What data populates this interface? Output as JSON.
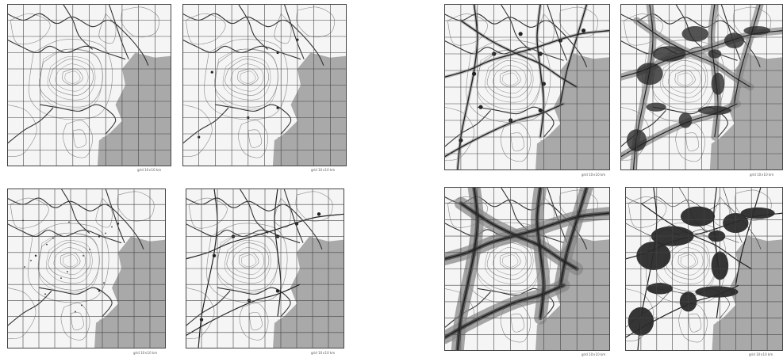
{
  "panels": [
    {
      "id": "p1",
      "caption": "grid 10×10 km",
      "stage": "base"
    },
    {
      "id": "p2",
      "caption": "grid 10×10 km",
      "stage": "nodes"
    },
    {
      "id": "p3",
      "caption": "grid 10×10 km",
      "stage": "points"
    },
    {
      "id": "p4",
      "caption": "grid 10×10 km",
      "stage": "network"
    },
    {
      "id": "p5",
      "caption": "grid 10×10 km",
      "stage": "routes"
    },
    {
      "id": "p6",
      "caption": "grid 10×10 km",
      "stage": "growth"
    },
    {
      "id": "p7",
      "caption": "grid 10×10 km",
      "stage": "dense"
    },
    {
      "id": "p8",
      "caption": "grid 10×10 km",
      "stage": "settlement"
    }
  ],
  "colors": {
    "land": "#f5f5f5",
    "sea": "#a9a9a9",
    "grid": "#444444",
    "contour": "#888888",
    "river": "#333333",
    "road": "#222222",
    "urban_light": "#8a8a8a",
    "urban_dark": "#2a2a2a"
  }
}
